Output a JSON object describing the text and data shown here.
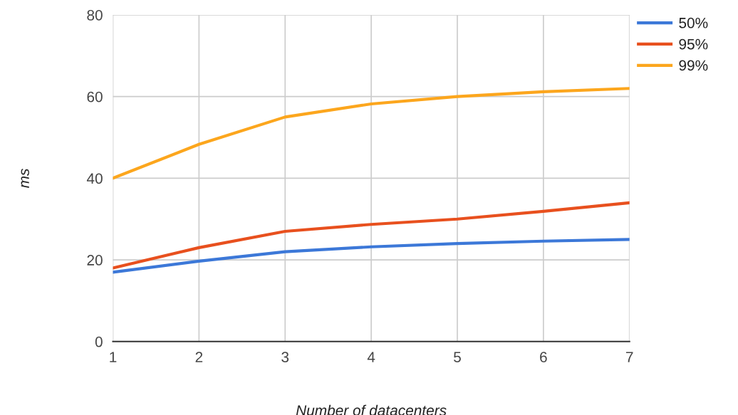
{
  "chart_data": {
    "type": "line",
    "xlabel": "Number of datacenters",
    "ylabel": "ms",
    "x": [
      1,
      2,
      3,
      4,
      5,
      6,
      7
    ],
    "series": [
      {
        "name": "50%",
        "color": "#3c78d8",
        "values": [
          17,
          19.7,
          22,
          23.2,
          24,
          24.6,
          25
        ]
      },
      {
        "name": "95%",
        "color": "#e8501e",
        "values": [
          18,
          23,
          27,
          28.7,
          30,
          31.9,
          34
        ]
      },
      {
        "name": "99%",
        "color": "#fca61d",
        "values": [
          40,
          48.3,
          55,
          58.2,
          60,
          61.2,
          62
        ]
      }
    ],
    "xlim": [
      1,
      7
    ],
    "xticks": [
      1,
      2,
      3,
      4,
      5,
      6,
      7
    ],
    "ylim": [
      0,
      80
    ],
    "yticks": [
      0,
      20,
      40,
      60,
      80
    ],
    "grid": true,
    "legend": "top right",
    "marker": "none",
    "line_style": "solid"
  }
}
